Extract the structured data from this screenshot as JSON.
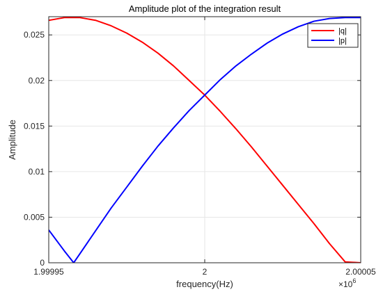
{
  "chart_data": {
    "type": "line",
    "title": "Amplitude plot of the integration result",
    "xlabel": "frequency(Hz)",
    "ylabel": "Amplitude",
    "x_multiplier_label": "×10",
    "x_multiplier_exponent": "6",
    "xlim": [
      1.99995,
      2.00005
    ],
    "ylim": [
      0,
      0.027
    ],
    "x_ticks": [
      1.99995,
      2,
      2.00005
    ],
    "x_tick_labels": [
      "1.99995",
      "2",
      "2.00005"
    ],
    "y_ticks": [
      0,
      0.005,
      0.01,
      0.015,
      0.02,
      0.025
    ],
    "y_tick_labels": [
      "0",
      "0.005",
      "0.01",
      "0.015",
      "0.02",
      "0.025"
    ],
    "grid": true,
    "legend_position": "top-right",
    "series": [
      {
        "name": "|q|",
        "color": "#ff0000",
        "x": [
          1.99995,
          1.999955,
          1.99996,
          1.999965,
          1.99997,
          1.999975,
          1.99998,
          1.999985,
          1.99999,
          1.999995,
          2.0,
          2.000005,
          2.00001,
          2.000015,
          2.00002,
          2.000025,
          2.00003,
          2.000035,
          2.00004,
          2.000045,
          2.00005
        ],
        "values": [
          0.0266,
          0.0269,
          0.0269,
          0.0266,
          0.026,
          0.0252,
          0.0242,
          0.023,
          0.0216,
          0.02,
          0.0184,
          0.0166,
          0.0147,
          0.0127,
          0.0106,
          0.0085,
          0.0064,
          0.0043,
          0.0021,
          0.0001,
          0.0
        ]
      },
      {
        "name": "|p|",
        "color": "#0000ff",
        "x": [
          1.99995,
          1.999955,
          1.999958,
          1.99996,
          1.999965,
          1.99997,
          1.999975,
          1.99998,
          1.999985,
          1.99999,
          1.999995,
          2.0,
          2.000005,
          2.00001,
          2.000015,
          2.00002,
          2.000025,
          2.00003,
          2.000035,
          2.00004,
          2.000045,
          2.00005
        ],
        "values": [
          0.0036,
          0.0013,
          0.0,
          0.001,
          0.0035,
          0.006,
          0.0083,
          0.0106,
          0.0128,
          0.0148,
          0.0167,
          0.0184,
          0.0201,
          0.0216,
          0.0229,
          0.0241,
          0.0251,
          0.0259,
          0.0265,
          0.0268,
          0.0269,
          0.0269
        ]
      }
    ]
  }
}
